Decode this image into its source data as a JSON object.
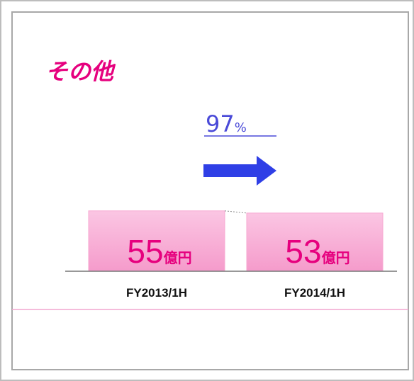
{
  "chart_data": {
    "type": "bar",
    "title": "その他",
    "categories": [
      "FY2013/1H",
      "FY2014/1H"
    ],
    "values": [
      55,
      53
    ],
    "unit": "億円",
    "ratio": 97,
    "ratio_unit": "%",
    "color": "#f9b3d8"
  }
}
